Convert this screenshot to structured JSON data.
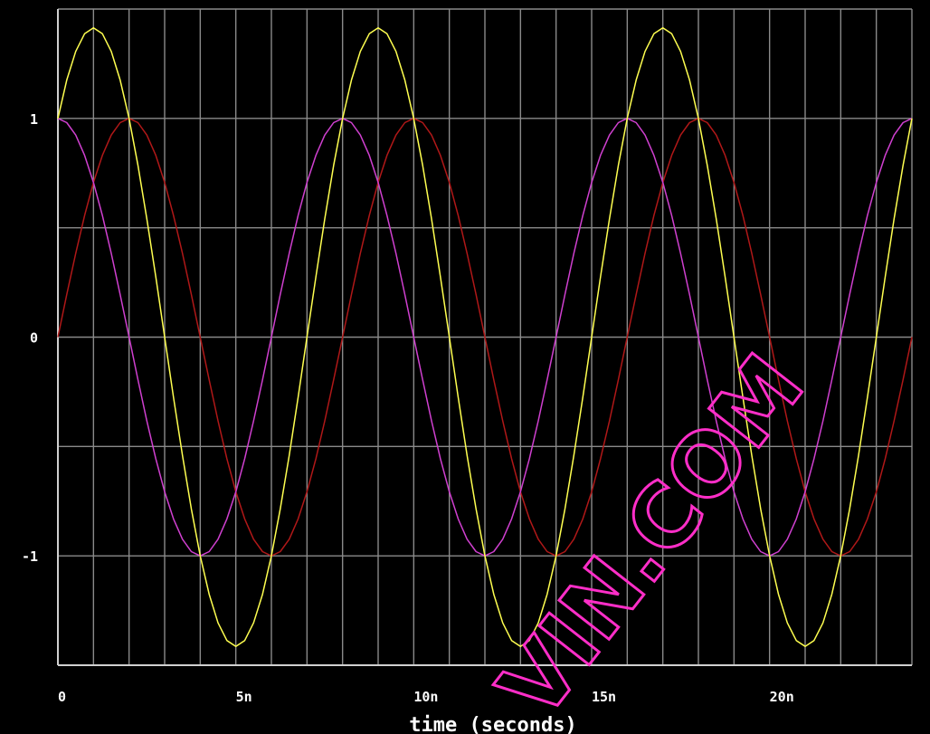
{
  "chart_data": {
    "type": "line",
    "title": "",
    "xlabel": "time (seconds)",
    "ylabel": "",
    "xlim": [
      0,
      24
    ],
    "ylim": [
      -1.5,
      1.5
    ],
    "x_ticks": [
      {
        "value": 0,
        "label": "0"
      },
      {
        "value": 5,
        "label": "5n"
      },
      {
        "value": 10,
        "label": "10n"
      },
      {
        "value": 15,
        "label": "15n"
      },
      {
        "value": 20,
        "label": "20n"
      }
    ],
    "y_ticks": [
      {
        "value": 1,
        "label": "1"
      },
      {
        "value": 0,
        "label": "0"
      },
      {
        "value": -1,
        "label": "-1"
      }
    ],
    "grid": true,
    "legend": "none",
    "background": "#000000",
    "series": [
      {
        "color": "#b01818",
        "amplitude": 1,
        "period": 8.0,
        "phase": 0.0
      },
      {
        "color": "#d040d0",
        "amplitude": 1,
        "period": 8.0,
        "phase": 1.5708
      },
      {
        "color": "#ffff50",
        "amplitude": 1.414,
        "period": 8.0,
        "phase": 0.7854
      }
    ],
    "watermark": "VIN.COM"
  }
}
